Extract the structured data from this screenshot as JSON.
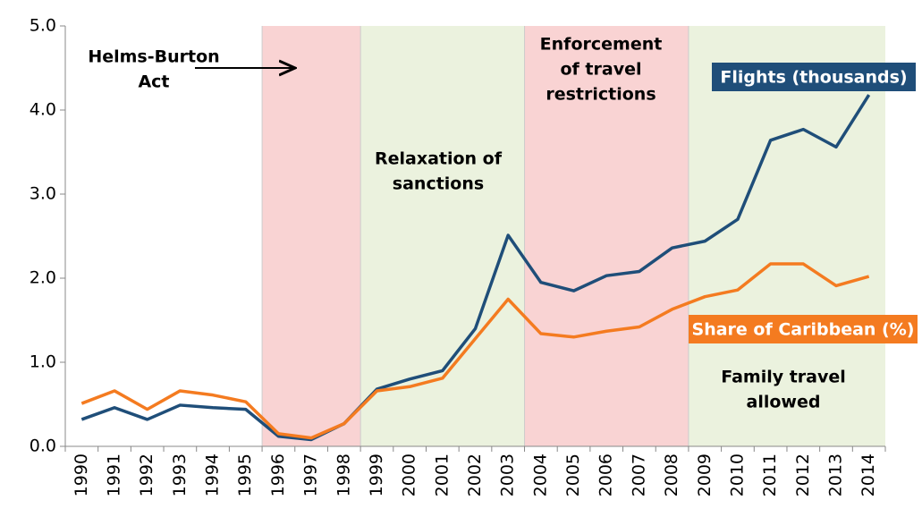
{
  "chart_data": {
    "type": "line",
    "categories": [
      "1990",
      "1991",
      "1992",
      "1993",
      "1994",
      "1995",
      "1996",
      "1997",
      "1998",
      "1999",
      "2000",
      "2001",
      "2002",
      "2003",
      "2004",
      "2005",
      "2006",
      "2007",
      "2008",
      "2009",
      "2010",
      "2011",
      "2012",
      "2013",
      "2014"
    ],
    "series": [
      {
        "name": "Flights (thousands)",
        "color": "#1f4e79",
        "values": [
          0.32,
          0.46,
          0.32,
          0.49,
          0.46,
          0.44,
          0.12,
          0.08,
          0.27,
          0.68,
          0.8,
          0.9,
          1.4,
          2.51,
          1.95,
          1.85,
          2.03,
          2.08,
          2.36,
          2.44,
          2.7,
          3.64,
          3.77,
          3.56,
          4.18
        ]
      },
      {
        "name": "Share of Caribbean (%)",
        "color": "#f47b20",
        "values": [
          0.51,
          0.66,
          0.44,
          0.66,
          0.61,
          0.53,
          0.15,
          0.1,
          0.27,
          0.66,
          0.71,
          0.81,
          1.28,
          1.75,
          1.34,
          1.3,
          1.37,
          1.42,
          1.63,
          1.78,
          1.86,
          2.17,
          2.17,
          1.91,
          2.02
        ]
      }
    ],
    "ylim": [
      0,
      5
    ],
    "yticks": [
      {
        "value": 0,
        "label": "0.0"
      },
      {
        "value": 1,
        "label": "1.0"
      },
      {
        "value": 2,
        "label": "2.0"
      },
      {
        "value": 3,
        "label": "3.0"
      },
      {
        "value": 4,
        "label": "4.0"
      },
      {
        "value": 5,
        "label": "5.0"
      }
    ],
    "regions": [
      {
        "start": "1996",
        "end": "1998",
        "color": "#f9d3d3",
        "label": [
          "Helms-Burton",
          "Act"
        ]
      },
      {
        "start": "1999",
        "end": "2003",
        "color": "#ebf2de",
        "label": [
          "Relaxation of",
          "sanctions"
        ]
      },
      {
        "start": "2004",
        "end": "2008",
        "color": "#f9d3d3",
        "label": [
          "Enforcement",
          "of travel",
          "restrictions"
        ]
      },
      {
        "start": "2009",
        "end": "2014",
        "color": "#ebf2de",
        "label": [
          "Family travel",
          "allowed"
        ]
      }
    ]
  }
}
